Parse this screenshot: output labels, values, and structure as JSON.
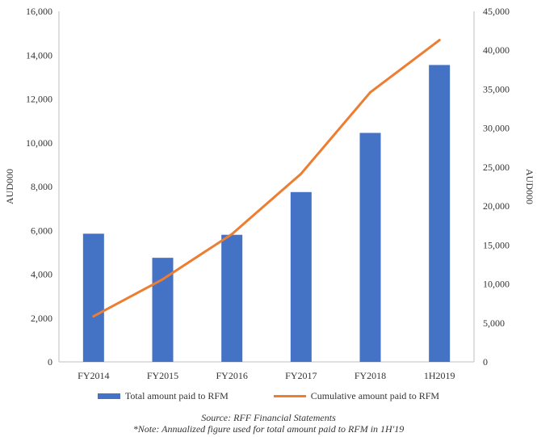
{
  "colors": {
    "bar": "#4472c4",
    "line": "#ed7d31",
    "axis": "#bfbfbf"
  },
  "chart_data": {
    "type": "bar",
    "categories": [
      "FY2014",
      "FY2015",
      "FY2016",
      "FY2017",
      "FY2018",
      "1H2019"
    ],
    "series": [
      {
        "name": "Total amount paid to RFM",
        "type": "bar",
        "axis": "left",
        "values": [
          5850,
          4750,
          5800,
          7750,
          10450,
          13550
        ]
      },
      {
        "name": "Cumulative amount paid to RFM",
        "type": "line",
        "axis": "right",
        "values": [
          5850,
          10600,
          16400,
          24150,
          34600,
          41300
        ]
      }
    ],
    "ylabel": "AUD000",
    "y2label": "AUD000",
    "ylim": [
      0,
      16000
    ],
    "y2lim": [
      0,
      45000
    ],
    "yticks": [
      "0",
      "2,000",
      "4,000",
      "6,000",
      "8,000",
      "10,000",
      "12,000",
      "14,000",
      "16,000"
    ],
    "y2ticks": [
      "0",
      "5,000",
      "10,000",
      "15,000",
      "20,000",
      "25,000",
      "30,000",
      "35,000",
      "40,000",
      "45,000"
    ],
    "grid": false,
    "legend_position": "bottom"
  },
  "legend": {
    "bar_label": "Total amount paid to RFM",
    "line_label": "Cumulative amount paid to RFM"
  },
  "footer": {
    "source": "Source: RFF Financial Statements",
    "note": "*Note: Annualized figure used for total amount paid to RFM in 1H'19"
  }
}
